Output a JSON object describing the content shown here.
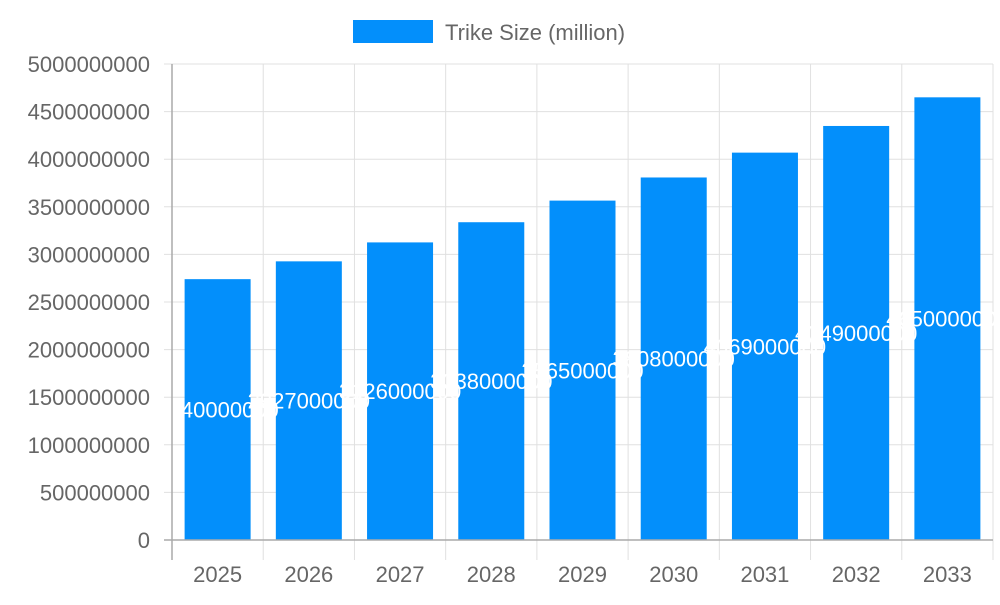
{
  "chart_data": {
    "type": "bar",
    "categories": [
      "2025",
      "2026",
      "2027",
      "2028",
      "2029",
      "2030",
      "2031",
      "2032",
      "2033"
    ],
    "series": [
      {
        "name": "Trike Size (million)",
        "values": [
          2740000000,
          2927000000,
          3126000000,
          3338000000,
          3565000000,
          3808000000,
          4069000000,
          4349000000,
          4650000000
        ]
      }
    ],
    "ylim": [
      0,
      5000000000
    ],
    "yticks": [
      0,
      500000000,
      1000000000,
      1500000000,
      2000000000,
      2500000000,
      3000000000,
      3500000000,
      4000000000,
      4500000000,
      5000000000
    ],
    "grid": true,
    "legend": "top",
    "data_labels": true,
    "colors": {
      "bar": "#038ffb",
      "grid": "#e0e0e0",
      "axis": "#aaaaaa",
      "text": "#666666",
      "label": "#ffffff"
    }
  }
}
